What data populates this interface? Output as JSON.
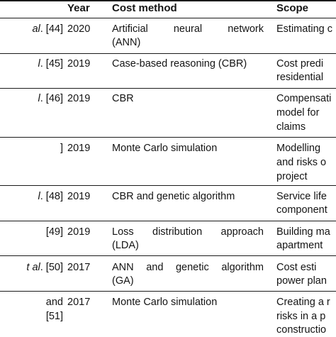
{
  "header": {
    "year": "Year",
    "method": "Cost method",
    "scope": "Scope"
  },
  "rows": [
    {
      "study": [
        "al. [44]"
      ],
      "year": "2020",
      "method": [
        "Artificial neural network",
        "(ANN)"
      ],
      "scope": [
        "Estimating c"
      ]
    },
    {
      "study": [
        "l. [45]"
      ],
      "year": "2019",
      "method": [
        "Case-based reasoning (CBR)"
      ],
      "scope": [
        "Cost predi",
        "residential"
      ]
    },
    {
      "study": [
        "l. [46]"
      ],
      "year": "2019",
      "method": [
        "CBR"
      ],
      "scope": [
        "Compensati",
        "model for",
        "claims"
      ]
    },
    {
      "study": [
        "]"
      ],
      "year": "2019",
      "method": [
        "Monte Carlo simulation"
      ],
      "scope": [
        "Modelling",
        "and risks o",
        "project"
      ]
    },
    {
      "study": [
        "l. [48]"
      ],
      "year": "2019",
      "method": [
        "CBR and genetic algorithm"
      ],
      "scope": [
        "Service life",
        "component"
      ]
    },
    {
      "study": [
        "[49]"
      ],
      "year": "2019",
      "method": [
        "Loss distribution approach",
        "(LDA)"
      ],
      "scope": [
        "Building ma",
        "apartment"
      ]
    },
    {
      "study": [
        "t al. [50]"
      ],
      "year": "2017",
      "method": [
        "ANN and genetic algorithm",
        "(GA)"
      ],
      "scope": [
        "Cost esti",
        "power plan"
      ]
    },
    {
      "study": [
        "and",
        "[51]"
      ],
      "year": "2017",
      "method": [
        "Monte Carlo simulation"
      ],
      "scope": [
        "Creating a r",
        "risks in a p",
        "constructio"
      ]
    }
  ]
}
